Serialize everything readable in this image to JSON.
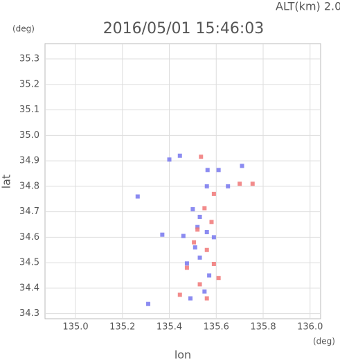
{
  "chart_data": {
    "type": "scatter",
    "title": "2016/05/01 15:46:03",
    "subtitle": "ALT(km) 2.0",
    "y_unit": "(deg)",
    "x_unit": "(deg)",
    "x_label": "lon",
    "y_label": "lat",
    "xlim": [
      134.87,
      136.045
    ],
    "ylim": [
      34.28,
      35.36
    ],
    "xticks": [
      {
        "value": 135.0,
        "label": "135.0"
      },
      135.2,
      135.4,
      135.6,
      135.8,
      {
        "value": 136.0,
        "label": "136.0"
      }
    ],
    "yticks": [
      34.3,
      34.4,
      34.5,
      34.6,
      34.7,
      34.8,
      34.9,
      {
        "value": 35.0,
        "label": "35.0"
      },
      35.1,
      35.2,
      35.3
    ],
    "grid": true,
    "series": [
      {
        "color": "#7777ee",
        "x": [
          135.4,
          135.445,
          135.563,
          135.61,
          135.71,
          135.65,
          135.56,
          135.5,
          135.53,
          135.56,
          135.59,
          135.52,
          135.46,
          135.53,
          135.475,
          135.55,
          135.49,
          135.31,
          135.265,
          135.37,
          135.57,
          135.51
        ],
        "values": [
          34.905,
          34.92,
          34.864,
          34.864,
          34.88,
          34.8,
          34.8,
          34.71,
          34.68,
          34.62,
          34.6,
          34.64,
          34.605,
          34.52,
          34.497,
          34.387,
          34.36,
          34.338,
          34.76,
          34.61,
          34.45,
          34.56
        ]
      },
      {
        "color": "#f07777",
        "x": [
          135.535,
          135.7,
          135.755,
          135.59,
          135.55,
          135.58,
          135.52,
          135.56,
          135.59,
          135.53,
          135.56,
          135.445,
          135.475,
          135.61,
          135.505
        ],
        "values": [
          34.916,
          34.81,
          34.81,
          34.77,
          34.714,
          34.66,
          34.63,
          34.55,
          34.495,
          34.415,
          34.36,
          34.374,
          34.48,
          34.44,
          34.58
        ]
      }
    ]
  }
}
